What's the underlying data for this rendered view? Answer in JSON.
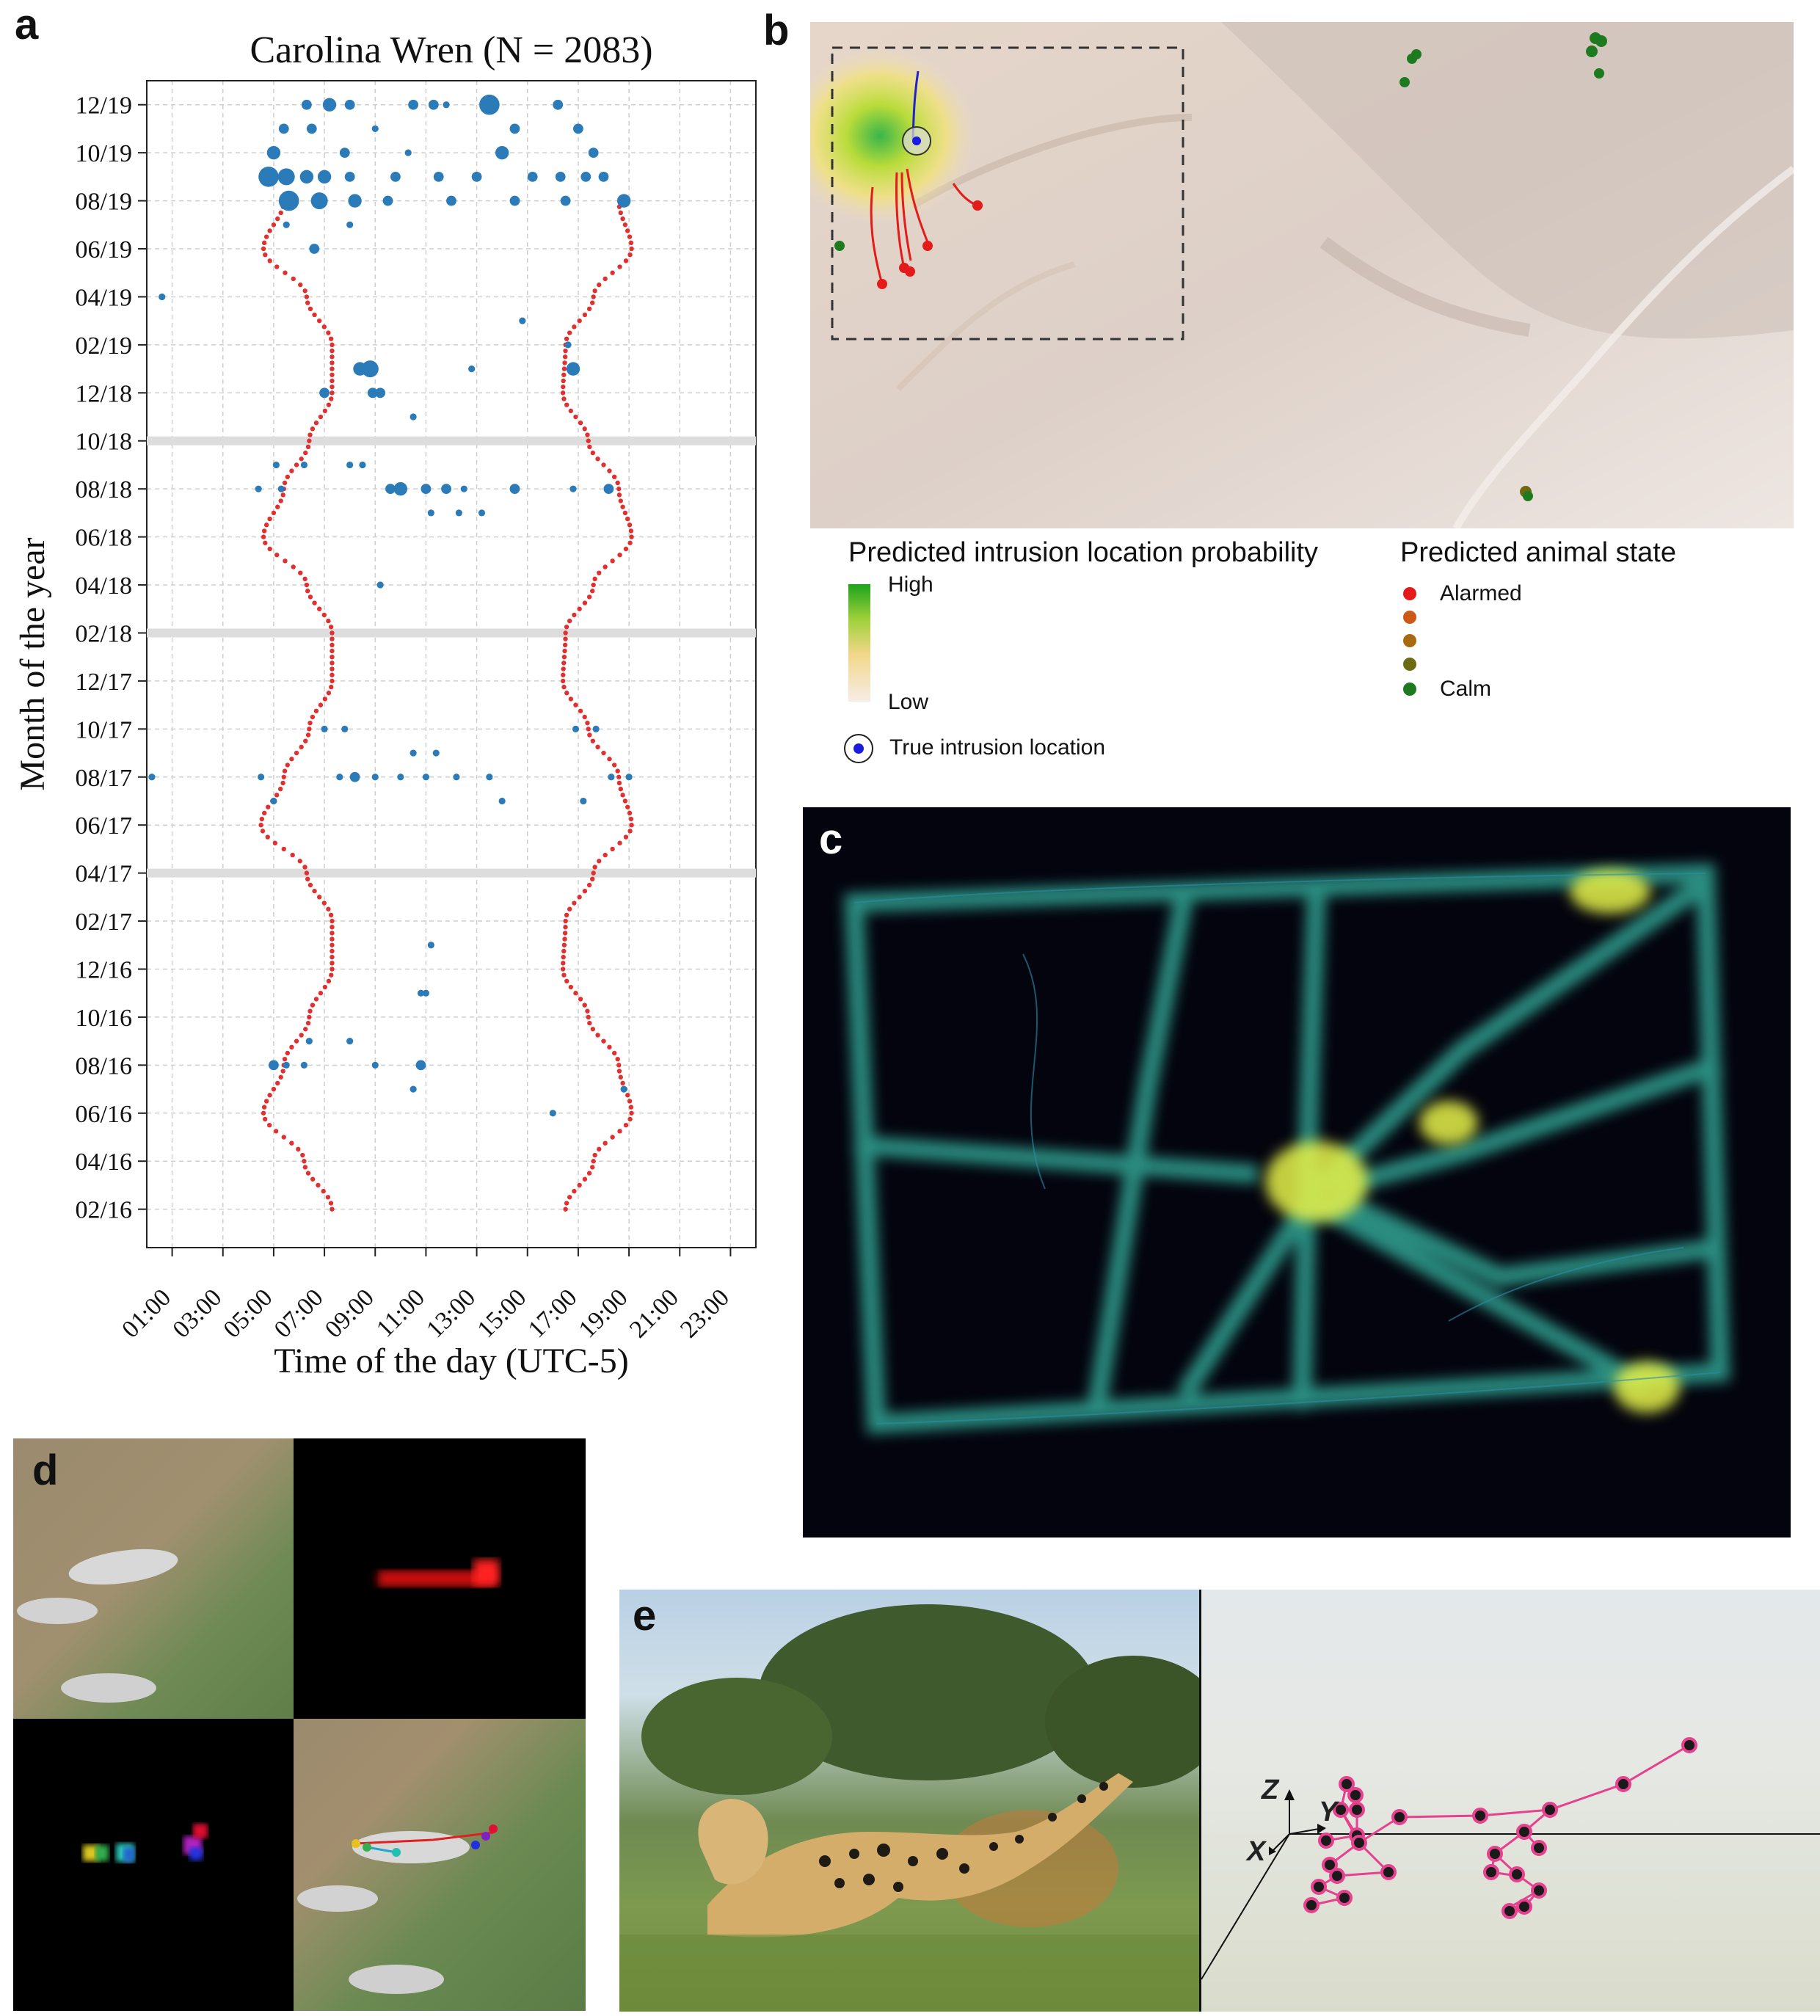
{
  "panels": {
    "a": {
      "label": "a"
    },
    "b": {
      "label": "b"
    },
    "c": {
      "label": "c"
    },
    "d": {
      "label": "d"
    },
    "e": {
      "label": "e"
    }
  },
  "chart_data": {
    "type": "scatter",
    "title": "Carolina Wren (N = 2083)",
    "xlabel": "Time of the day (UTC-5)",
    "ylabel": "Month of the year",
    "xlim": [
      0,
      24
    ],
    "x_ticks": [
      "01:00",
      "03:00",
      "05:00",
      "07:00",
      "09:00",
      "11:00",
      "13:00",
      "15:00",
      "17:00",
      "19:00",
      "21:00",
      "23:00"
    ],
    "y_ticks": [
      "02/16",
      "04/16",
      "06/16",
      "08/16",
      "10/16",
      "12/16",
      "02/17",
      "04/17",
      "06/17",
      "08/17",
      "10/17",
      "12/17",
      "02/18",
      "04/18",
      "06/18",
      "08/18",
      "10/18",
      "12/18",
      "02/19",
      "04/19",
      "06/19",
      "08/19",
      "10/19",
      "12/19"
    ],
    "grid": true,
    "gaps_months": [
      "10/18",
      "02/18",
      "04/17"
    ],
    "series": [
      {
        "kind": "sunrise",
        "color": "#e03030",
        "points": [
          [
            "02/16",
            7.3
          ],
          [
            "04/16",
            6.2
          ],
          [
            "06/16",
            4.6
          ],
          [
            "08/16",
            5.4
          ],
          [
            "10/16",
            6.4
          ],
          [
            "12/16",
            7.3
          ],
          [
            "02/17",
            7.3
          ],
          [
            "04/17",
            6.3
          ],
          [
            "06/17",
            4.5
          ],
          [
            "08/17",
            5.4
          ],
          [
            "10/17",
            6.4
          ],
          [
            "12/17",
            7.3
          ],
          [
            "02/18",
            7.3
          ],
          [
            "04/18",
            6.3
          ],
          [
            "06/18",
            4.6
          ],
          [
            "08/18",
            5.4
          ],
          [
            "10/18",
            6.4
          ],
          [
            "12/18",
            7.3
          ],
          [
            "02/19",
            7.3
          ],
          [
            "04/19",
            6.3
          ],
          [
            "06/19",
            4.6
          ],
          [
            "08/19",
            5.4
          ]
        ]
      },
      {
        "kind": "sunset",
        "color": "#e03030",
        "points": [
          [
            "02/16",
            16.5
          ],
          [
            "04/16",
            17.6
          ],
          [
            "06/16",
            19.1
          ],
          [
            "08/16",
            18.6
          ],
          [
            "10/16",
            17.4
          ],
          [
            "12/16",
            16.4
          ],
          [
            "02/17",
            16.5
          ],
          [
            "04/17",
            17.6
          ],
          [
            "06/17",
            19.1
          ],
          [
            "08/17",
            18.6
          ],
          [
            "10/17",
            17.4
          ],
          [
            "12/17",
            16.4
          ],
          [
            "02/18",
            16.5
          ],
          [
            "04/18",
            17.6
          ],
          [
            "06/18",
            19.1
          ],
          [
            "08/18",
            18.6
          ],
          [
            "10/18",
            17.4
          ],
          [
            "12/18",
            16.4
          ],
          [
            "02/19",
            16.5
          ],
          [
            "04/19",
            17.6
          ],
          [
            "06/19",
            19.1
          ],
          [
            "08/19",
            18.6
          ]
        ]
      },
      {
        "kind": "detections",
        "color": "#2b7bb9",
        "points": [
          [
            "12/19",
            7.2,
            4
          ],
          [
            "12/19",
            8.0,
            3
          ],
          [
            "12/19",
            10.5,
            3
          ],
          [
            "12/19",
            11.3,
            3
          ],
          [
            "12/19",
            13.5,
            6
          ],
          [
            "12/19",
            16.2,
            3
          ],
          [
            "12/19",
            6.3,
            3
          ],
          [
            "12/19",
            11.8,
            2
          ],
          [
            "11/19",
            5.4,
            3
          ],
          [
            "11/19",
            6.5,
            3
          ],
          [
            "11/19",
            9.0,
            2
          ],
          [
            "11/19",
            14.5,
            3
          ],
          [
            "11/19",
            17.0,
            3
          ],
          [
            "10/19",
            5.0,
            4
          ],
          [
            "10/19",
            7.8,
            3
          ],
          [
            "10/19",
            14.0,
            4
          ],
          [
            "10/19",
            17.6,
            3
          ],
          [
            "10/19",
            10.3,
            2
          ],
          [
            "09/19",
            4.8,
            6
          ],
          [
            "09/19",
            5.5,
            5
          ],
          [
            "09/19",
            6.3,
            4
          ],
          [
            "09/19",
            7.0,
            4
          ],
          [
            "09/19",
            8.0,
            3
          ],
          [
            "09/19",
            9.8,
            3
          ],
          [
            "09/19",
            11.5,
            3
          ],
          [
            "09/19",
            13.0,
            3
          ],
          [
            "09/19",
            15.2,
            3
          ],
          [
            "09/19",
            16.3,
            3
          ],
          [
            "09/19",
            17.3,
            3
          ],
          [
            "09/19",
            18.0,
            3
          ],
          [
            "08/19",
            5.6,
            6
          ],
          [
            "08/19",
            6.8,
            5
          ],
          [
            "08/19",
            8.2,
            4
          ],
          [
            "08/19",
            9.5,
            3
          ],
          [
            "08/19",
            12.0,
            3
          ],
          [
            "08/19",
            14.5,
            3
          ],
          [
            "08/19",
            16.5,
            3
          ],
          [
            "08/19",
            18.8,
            4
          ],
          [
            "07/19",
            5.5,
            2
          ],
          [
            "07/19",
            8.0,
            2
          ],
          [
            "06/19",
            6.6,
            3
          ],
          [
            "04/19",
            0.6,
            2
          ],
          [
            "03/19",
            14.8,
            2
          ],
          [
            "02/19",
            16.6,
            2
          ],
          [
            "01/19",
            8.4,
            4
          ],
          [
            "01/19",
            8.8,
            5
          ],
          [
            "01/19",
            12.8,
            2
          ],
          [
            "01/19",
            16.8,
            4
          ],
          [
            "12/18",
            7.0,
            3
          ],
          [
            "12/18",
            8.9,
            3
          ],
          [
            "12/18",
            9.2,
            3
          ],
          [
            "11/18",
            10.5,
            2
          ],
          [
            "09/18",
            5.1,
            2
          ],
          [
            "09/18",
            6.2,
            2
          ],
          [
            "09/18",
            8.0,
            2
          ],
          [
            "09/18",
            8.5,
            2
          ],
          [
            "08/18",
            10.0,
            4
          ],
          [
            "08/18",
            11.0,
            3
          ],
          [
            "08/18",
            11.8,
            3
          ],
          [
            "08/18",
            14.5,
            3
          ],
          [
            "08/18",
            16.8,
            2
          ],
          [
            "08/18",
            18.2,
            3
          ],
          [
            "08/18",
            4.4,
            2
          ],
          [
            "08/18",
            5.3,
            2
          ],
          [
            "08/18",
            12.5,
            2
          ],
          [
            "08/18",
            9.6,
            3
          ],
          [
            "07/18",
            11.2,
            2
          ],
          [
            "07/18",
            12.3,
            2
          ],
          [
            "07/18",
            13.2,
            2
          ],
          [
            "04/18",
            9.2,
            2
          ],
          [
            "10/17",
            7.0,
            2
          ],
          [
            "10/17",
            7.8,
            2
          ],
          [
            "10/17",
            16.9,
            2
          ],
          [
            "10/17",
            17.7,
            2
          ],
          [
            "09/17",
            10.5,
            2
          ],
          [
            "09/17",
            11.4,
            2
          ],
          [
            "08/17",
            0.2,
            2
          ],
          [
            "08/17",
            4.5,
            2
          ],
          [
            "08/17",
            7.6,
            2
          ],
          [
            "08/17",
            8.2,
            3
          ],
          [
            "08/17",
            9.0,
            2
          ],
          [
            "08/17",
            10.0,
            2
          ],
          [
            "08/17",
            11.0,
            2
          ],
          [
            "08/17",
            12.2,
            2
          ],
          [
            "08/17",
            13.5,
            2
          ],
          [
            "08/17",
            19.0,
            2
          ],
          [
            "08/17",
            18.3,
            2
          ],
          [
            "07/17",
            5.0,
            2
          ],
          [
            "07/17",
            14.0,
            2
          ],
          [
            "07/17",
            17.2,
            2
          ],
          [
            "01/17",
            11.2,
            2
          ],
          [
            "11/16",
            10.8,
            2
          ],
          [
            "11/16",
            11.0,
            2
          ],
          [
            "09/16",
            6.4,
            2
          ],
          [
            "09/16",
            8.0,
            2
          ],
          [
            "08/16",
            5.0,
            3
          ],
          [
            "08/16",
            5.5,
            2
          ],
          [
            "08/16",
            6.2,
            2
          ],
          [
            "08/16",
            9.0,
            2
          ],
          [
            "08/16",
            10.8,
            3
          ],
          [
            "07/16",
            10.5,
            2
          ],
          [
            "07/16",
            18.8,
            2
          ],
          [
            "06/16",
            16.0,
            2
          ]
        ]
      }
    ]
  },
  "panel_b": {
    "legend_prob_title": "Predicted intrusion location probability",
    "high": "High",
    "low": "Low",
    "true_location": "True intrusion location",
    "legend_state_title": "Predicted animal state",
    "states": [
      {
        "label": "Alarmed",
        "color": "#e51b1b"
      },
      {
        "label": "",
        "color": "#cc5a16"
      },
      {
        "label": "",
        "color": "#a86a10"
      },
      {
        "label": "",
        "color": "#6d6b12"
      },
      {
        "label": "Calm",
        "color": "#1e7a1e"
      }
    ]
  },
  "panel_e": {
    "axis_z": "Z",
    "axis_y": "Y",
    "axis_x": "X",
    "marker_color": "#e6408f"
  }
}
